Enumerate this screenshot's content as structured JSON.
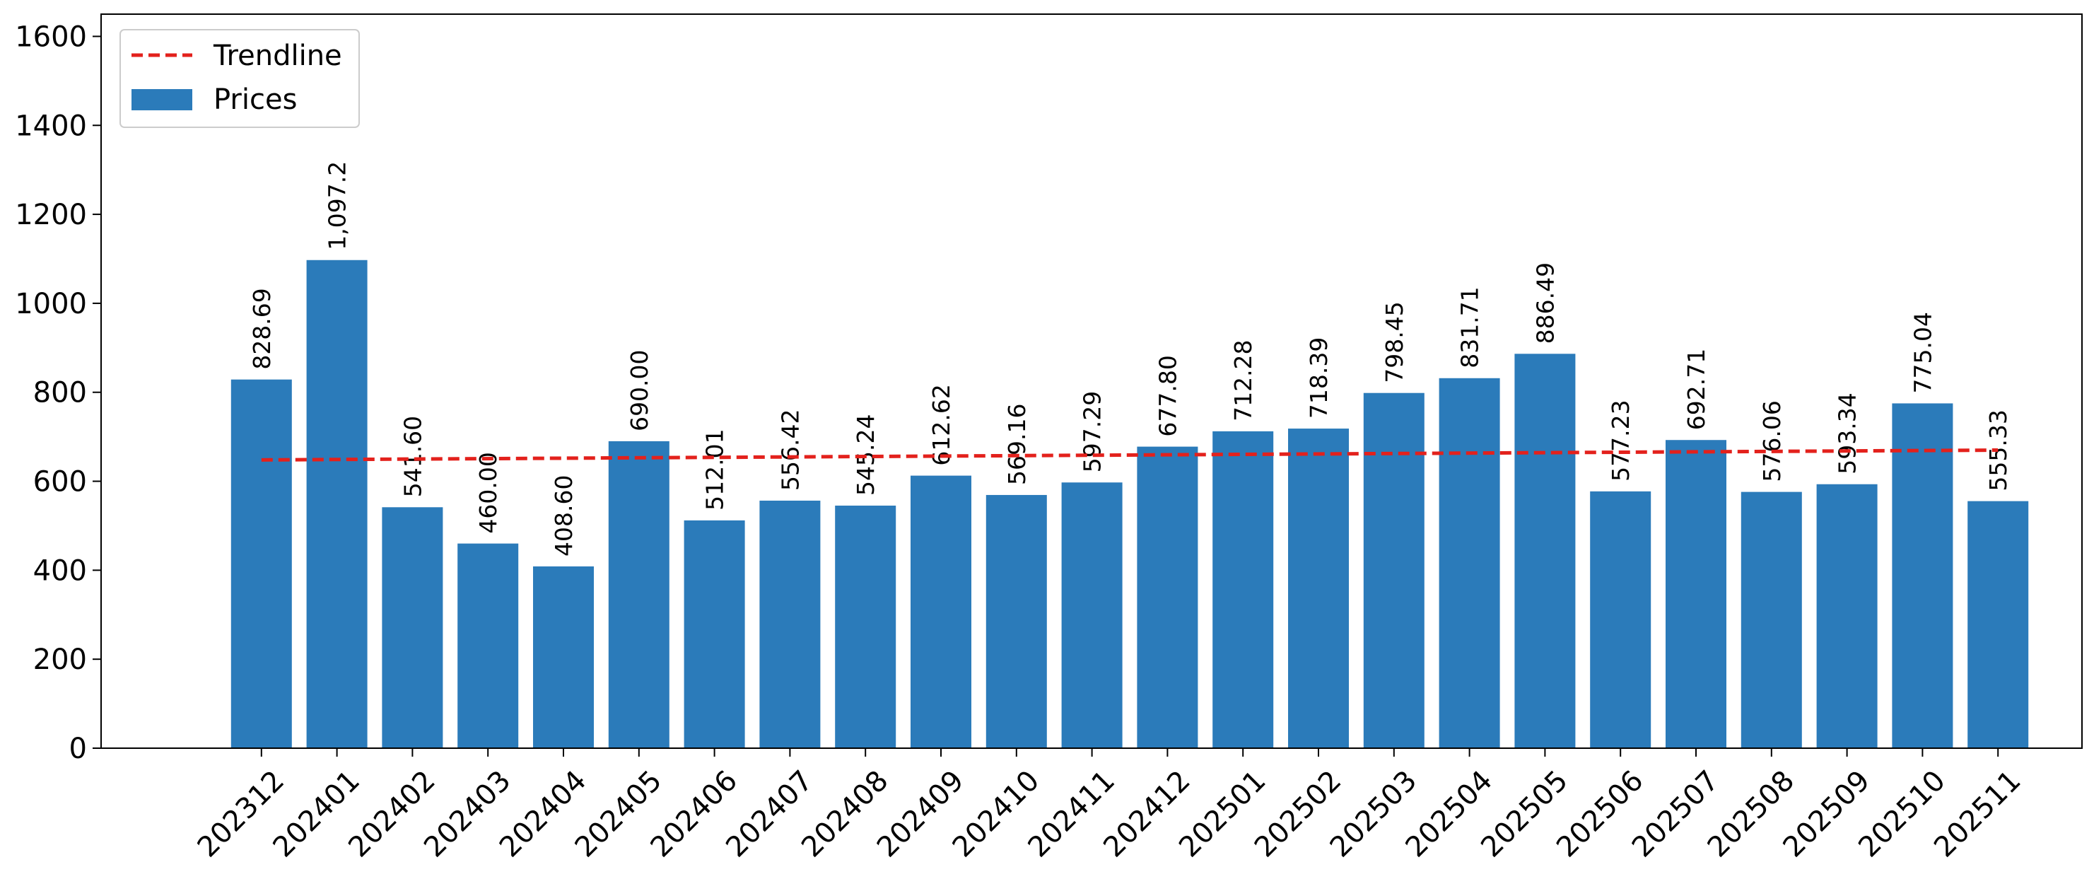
{
  "chart_data": {
    "type": "bar",
    "categories": [
      "202312",
      "202401",
      "202402",
      "202403",
      "202404",
      "202405",
      "202406",
      "202407",
      "202408",
      "202409",
      "202410",
      "202411",
      "202412",
      "202501",
      "202502",
      "202503",
      "202504",
      "202505",
      "202506",
      "202507",
      "202508",
      "202509",
      "202510",
      "202511"
    ],
    "series": [
      {
        "name": "Prices",
        "values": [
          828.69,
          1097.2,
          541.6,
          460.0,
          408.6,
          690.0,
          512.01,
          556.42,
          545.24,
          612.62,
          569.16,
          597.29,
          677.8,
          712.28,
          718.39,
          798.45,
          831.71,
          886.49,
          577.23,
          692.71,
          576.06,
          593.34,
          775.04,
          555.33
        ],
        "labels": [
          "828.69",
          "1,097.2",
          "541.60",
          "460.00",
          "408.60",
          "690.00",
          "512.01",
          "556.42",
          "545.24",
          "612.62",
          "569.16",
          "597.29",
          "677.80",
          "712.28",
          "718.39",
          "798.45",
          "831.71",
          "886.49",
          "577.23",
          "692.71",
          "576.06",
          "593.34",
          "775.04",
          "555.33"
        ],
        "color": "#2b7bba"
      }
    ],
    "trendline": {
      "name": "Trendline",
      "start": 648,
      "end": 670,
      "color": "#e3211c"
    },
    "yticks": [
      0,
      200,
      400,
      600,
      800,
      1000,
      1200,
      1400,
      1600
    ],
    "ylim": [
      0,
      1650
    ],
    "title": "",
    "xlabel": "",
    "ylabel": "",
    "legend_position": "top-left",
    "grid": false
  }
}
